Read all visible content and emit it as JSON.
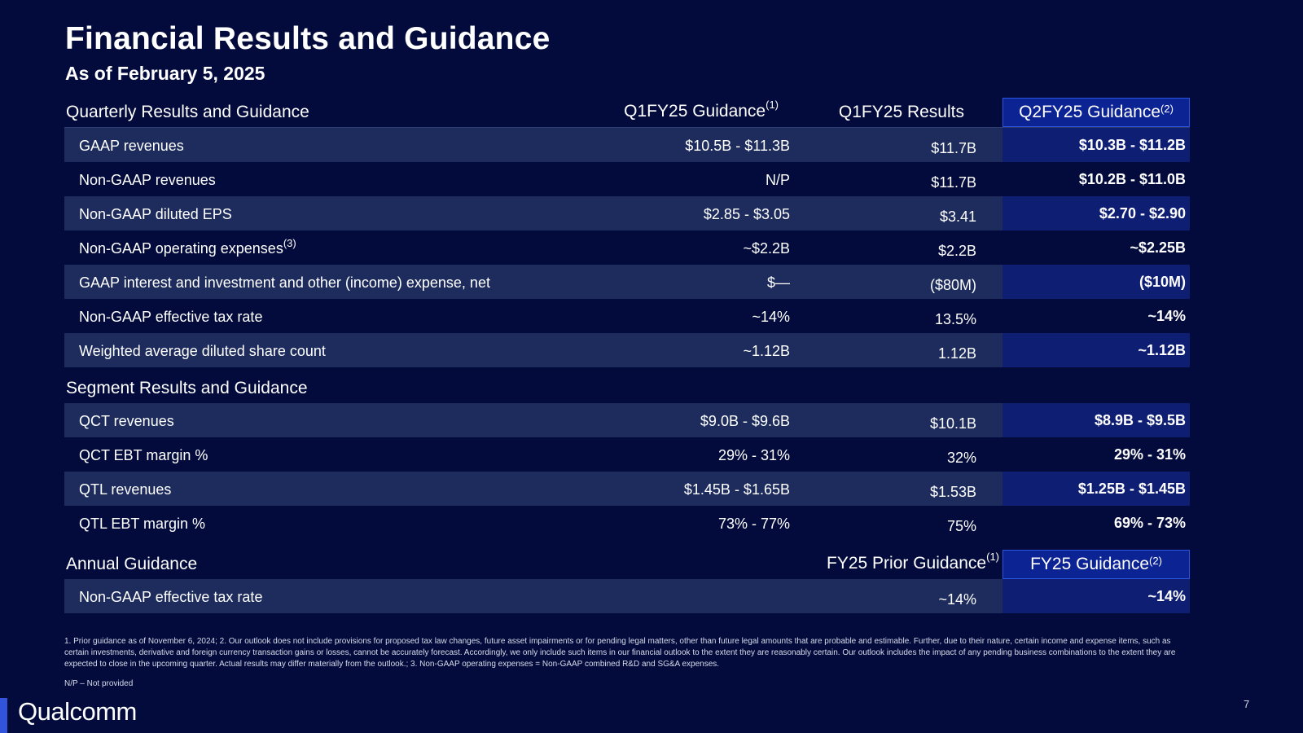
{
  "title": "Financial Results and Guidance",
  "subtitle": "As of February 5, 2025",
  "quarterly": {
    "header": {
      "label": "Quarterly Results and Guidance",
      "col1": "Q1FY25 Guidance",
      "col1_sup": "(1)",
      "col2": "Q1FY25 Results",
      "col3": "Q2FY25 Guidance",
      "col3_sup": "(2)"
    },
    "rows": [
      {
        "label": "GAAP revenues",
        "sup": "",
        "v1": "$10.5B - $11.3B",
        "v2": "$11.7B",
        "v3": "$10.3B - $11.2B"
      },
      {
        "label": "Non-GAAP revenues",
        "sup": "",
        "v1": "N/P",
        "v2": "$11.7B",
        "v3": "$10.2B - $11.0B"
      },
      {
        "label": "Non-GAAP diluted EPS",
        "sup": "",
        "v1": "$2.85 - $3.05",
        "v2": "$3.41",
        "v3": "$2.70 - $2.90"
      },
      {
        "label": "Non-GAAP operating expenses",
        "sup": "(3)",
        "v1": "~$2.2B",
        "v2": "$2.2B",
        "v3": "~$2.25B"
      },
      {
        "label": "GAAP interest and investment and other (income) expense, net",
        "sup": "",
        "v1": "$—",
        "v2": "($80M)",
        "v3": "($10M)"
      },
      {
        "label": "Non-GAAP effective tax rate",
        "sup": "",
        "v1": "~14%",
        "v2": "13.5%",
        "v3": "~14%"
      },
      {
        "label": "Weighted average diluted share count",
        "sup": "",
        "v1": "~1.12B",
        "v2": "1.12B",
        "v3": "~1.12B"
      }
    ]
  },
  "segment": {
    "label": "Segment Results and Guidance",
    "rows": [
      {
        "label": "QCT revenues",
        "v1": "$9.0B - $9.6B",
        "v2": "$10.1B",
        "v3": "$8.9B - $9.5B"
      },
      {
        "label": "QCT EBT margin %",
        "v1": "29% - 31%",
        "v2": "32%",
        "v3": "29% - 31%"
      },
      {
        "label": "QTL revenues",
        "v1": "$1.45B - $1.65B",
        "v2": "$1.53B",
        "v3": "$1.25B - $1.45B"
      },
      {
        "label": "QTL EBT margin %",
        "v1": "73% - 77%",
        "v2": "75%",
        "v3": "69% - 73%"
      }
    ]
  },
  "annual": {
    "label": "Annual Guidance",
    "col2": "FY25 Prior Guidance",
    "col2_sup": "(1)",
    "col3": "FY25 Guidance",
    "col3_sup": "(2)",
    "rows": [
      {
        "label": "Non-GAAP effective tax rate",
        "v2": "~14%",
        "v3": "~14%"
      }
    ]
  },
  "footnote": "1. Prior guidance as of November 6, 2024; 2. Our outlook does not include provisions for proposed tax law changes, future asset impairments or for pending legal matters, other than future legal amounts that are probable and estimable. Further, due to their nature, certain income and expense items, such as certain investments, derivative and foreign currency transaction gains or losses, cannot be accurately forecast. Accordingly, we only include such items in our financial outlook to the extent they are reasonably certain. Our outlook includes the impact of any pending business combinations to the extent they are expected to close in the upcoming quarter. Actual results may differ materially from the outlook.; 3. Non-GAAP operating expenses = Non-GAAP combined R&D and SG&A expenses.",
  "np_note": "N/P – Not provided",
  "logo": "Qualcomm",
  "page_number": "7",
  "colors": {
    "background": "#020b3c",
    "row_shade": "#1d2c5c",
    "highlight": "#0c2394",
    "accent": "#3253dc"
  }
}
